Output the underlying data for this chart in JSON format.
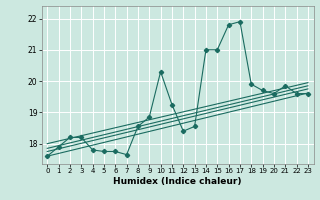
{
  "title": "",
  "xlabel": "Humidex (Indice chaleur)",
  "background_color": "#cce8e0",
  "grid_color": "#ffffff",
  "line_color": "#1a6b60",
  "xlim": [
    -0.5,
    23.5
  ],
  "ylim": [
    17.35,
    22.4
  ],
  "yticks": [
    18,
    19,
    20,
    21,
    22
  ],
  "xticks": [
    0,
    1,
    2,
    3,
    4,
    5,
    6,
    7,
    8,
    9,
    10,
    11,
    12,
    13,
    14,
    15,
    16,
    17,
    18,
    19,
    20,
    21,
    22,
    23
  ],
  "zigzag": [
    17.6,
    17.9,
    18.2,
    18.2,
    17.8,
    17.75,
    17.75,
    17.65,
    18.55,
    18.85,
    20.3,
    19.25,
    18.4,
    18.55,
    21.0,
    21.0,
    21.8,
    21.9,
    19.9,
    19.7,
    19.6,
    19.85,
    19.6,
    19.6
  ],
  "trend_lines": [
    {
      "x0": 0,
      "y0": 17.6,
      "x1": 23,
      "y1": 19.62
    },
    {
      "x0": 0,
      "y0": 17.75,
      "x1": 23,
      "y1": 19.75
    },
    {
      "x0": 0,
      "y0": 17.85,
      "x1": 23,
      "y1": 19.85
    },
    {
      "x0": 0,
      "y0": 18.0,
      "x1": 23,
      "y1": 19.95
    }
  ]
}
